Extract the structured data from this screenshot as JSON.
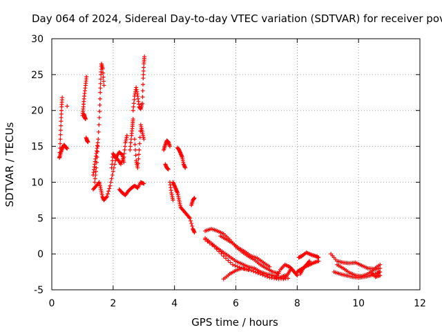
{
  "chart_data": {
    "type": "scatter",
    "title": "Day 064 of 2024, Sidereal Day-to-day VTEC variation (SDTVAR) for receiver pove",
    "xlabel": "GPS time / hours",
    "ylabel": "SDTVAR / TECUs",
    "xlim": [
      0,
      12
    ],
    "ylim": [
      -5,
      30
    ],
    "xticks": [
      "0",
      "2",
      "4",
      "6",
      "8",
      "10",
      "12"
    ],
    "yticks": [
      "-5",
      "0",
      "5",
      "10",
      "15",
      "20",
      "25",
      "30"
    ],
    "grid": true,
    "marker": "+",
    "series_color": "#ff0000",
    "tracks": [
      [
        [
          0.25,
          13.5
        ],
        [
          0.28,
          16.0
        ],
        [
          0.3,
          18.5
        ],
        [
          0.32,
          20.5
        ],
        [
          0.34,
          21.8
        ]
      ],
      [
        [
          0.25,
          13.4
        ],
        [
          0.3,
          14.2
        ],
        [
          0.35,
          14.8
        ],
        [
          0.4,
          15.2
        ],
        [
          0.45,
          14.9
        ],
        [
          0.5,
          14.7
        ]
      ],
      [
        [
          0.5,
          20.6
        ]
      ],
      [
        [
          1.0,
          19.3
        ],
        [
          1.03,
          20.5
        ],
        [
          1.06,
          22.0
        ],
        [
          1.1,
          23.5
        ],
        [
          1.13,
          24.7
        ]
      ],
      [
        [
          1.05,
          19.5
        ],
        [
          1.08,
          19.0
        ],
        [
          1.1,
          18.8
        ]
      ],
      [
        [
          1.12,
          16.2
        ],
        [
          1.15,
          15.8
        ],
        [
          1.18,
          15.6
        ]
      ],
      [
        [
          1.35,
          9.0
        ],
        [
          1.45,
          9.5
        ],
        [
          1.55,
          10.0
        ],
        [
          1.6,
          9.0
        ],
        [
          1.65,
          8.0
        ],
        [
          1.7,
          7.5
        ],
        [
          1.8,
          8.0
        ],
        [
          1.9,
          9.5
        ],
        [
          2.0,
          11.5
        ],
        [
          2.1,
          13.5
        ],
        [
          2.2,
          14.2
        ],
        [
          2.3,
          13.8
        ],
        [
          2.35,
          12.8
        ]
      ],
      [
        [
          1.4,
          10.0
        ],
        [
          1.45,
          12.0
        ],
        [
          1.5,
          15.0
        ],
        [
          1.55,
          19.0
        ],
        [
          1.58,
          22.5
        ],
        [
          1.6,
          25.0
        ],
        [
          1.62,
          26.5
        ],
        [
          1.66,
          25.8
        ],
        [
          1.7,
          23.5
        ]
      ],
      [
        [
          1.35,
          11.0
        ],
        [
          1.4,
          12.5
        ],
        [
          1.45,
          14.0
        ],
        [
          1.5,
          15.5
        ]
      ],
      [
        [
          1.95,
          12.0
        ],
        [
          2.0,
          14.0
        ],
        [
          2.05,
          13.5
        ],
        [
          2.15,
          13.2
        ],
        [
          2.25,
          12.5
        ],
        [
          2.35,
          13.5
        ],
        [
          2.4,
          15.5
        ],
        [
          2.45,
          16.5
        ]
      ],
      [
        [
          2.2,
          9.0
        ],
        [
          2.3,
          8.5
        ],
        [
          2.4,
          8.2
        ],
        [
          2.5,
          8.8
        ],
        [
          2.6,
          9.2
        ],
        [
          2.7,
          9.5
        ],
        [
          2.8,
          9.2
        ],
        [
          2.9,
          10.0
        ],
        [
          3.0,
          9.8
        ]
      ],
      [
        [
          2.55,
          14.5
        ],
        [
          2.6,
          16.5
        ],
        [
          2.63,
          17.8
        ],
        [
          2.65,
          18.8
        ]
      ],
      [
        [
          2.65,
          20.0
        ],
        [
          2.7,
          22.0
        ],
        [
          2.75,
          23.2
        ],
        [
          2.8,
          22.0
        ],
        [
          2.85,
          20.5
        ],
        [
          2.9,
          20.2
        ],
        [
          2.95,
          21.0
        ],
        [
          2.98,
          24.5
        ],
        [
          3.0,
          26.5
        ],
        [
          3.02,
          27.5
        ]
      ],
      [
        [
          2.7,
          16.0
        ],
        [
          2.75,
          13.0
        ],
        [
          2.8,
          12.0
        ],
        [
          2.85,
          14.5
        ],
        [
          2.9,
          18.0
        ],
        [
          2.95,
          17.0
        ],
        [
          3.0,
          16.0
        ]
      ],
      [
        [
          3.65,
          14.5
        ],
        [
          3.7,
          15.2
        ],
        [
          3.75,
          15.8
        ],
        [
          3.8,
          15.6
        ],
        [
          3.85,
          15.0
        ]
      ],
      [
        [
          3.7,
          12.5
        ],
        [
          3.75,
          12.0
        ],
        [
          3.8,
          11.8
        ]
      ],
      [
        [
          3.85,
          10.0
        ],
        [
          3.9,
          8.5
        ],
        [
          3.95,
          7.5
        ]
      ],
      [
        [
          3.95,
          10.0
        ],
        [
          4.0,
          9.5
        ],
        [
          4.05,
          9.0
        ],
        [
          4.1,
          8.5
        ],
        [
          4.15,
          7.5
        ],
        [
          4.2,
          6.5
        ],
        [
          4.3,
          6.0
        ],
        [
          4.4,
          5.5
        ],
        [
          4.5,
          5.0
        ],
        [
          4.6,
          3.5
        ],
        [
          4.65,
          3.0
        ]
      ],
      [
        [
          4.1,
          14.8
        ],
        [
          4.15,
          14.5
        ],
        [
          4.2,
          14.0
        ],
        [
          4.25,
          13.5
        ],
        [
          4.3,
          12.5
        ],
        [
          4.35,
          12.0
        ]
      ],
      [
        [
          4.55,
          6.8
        ],
        [
          4.6,
          7.5
        ],
        [
          4.65,
          7.8
        ]
      ],
      [
        [
          5.0,
          3.2
        ],
        [
          5.2,
          3.5
        ],
        [
          5.4,
          3.2
        ],
        [
          5.6,
          2.8
        ],
        [
          5.8,
          2.0
        ],
        [
          6.0,
          1.0
        ],
        [
          6.2,
          0.3
        ],
        [
          6.4,
          -0.3
        ],
        [
          6.6,
          -0.8
        ],
        [
          6.8,
          -1.5
        ],
        [
          7.0,
          -2.0
        ],
        [
          7.2,
          -2.5
        ],
        [
          7.4,
          -2.7
        ]
      ],
      [
        [
          5.0,
          2.2
        ],
        [
          5.2,
          1.5
        ],
        [
          5.4,
          0.8
        ],
        [
          5.6,
          0.2
        ],
        [
          5.8,
          -0.4
        ],
        [
          6.0,
          -1.0
        ],
        [
          6.2,
          -1.4
        ],
        [
          6.4,
          -1.8
        ],
        [
          6.6,
          -2.0
        ],
        [
          6.8,
          -2.5
        ],
        [
          7.0,
          -2.8
        ],
        [
          7.2,
          -3.0
        ],
        [
          7.4,
          -3.3
        ],
        [
          7.6,
          -3.0
        ]
      ],
      [
        [
          5.0,
          2.0
        ],
        [
          5.3,
          1.0
        ],
        [
          5.6,
          -0.3
        ],
        [
          5.9,
          -1.5
        ],
        [
          6.2,
          -2.0
        ],
        [
          6.5,
          -2.3
        ],
        [
          6.8,
          -2.8
        ],
        [
          7.1,
          -3.3
        ],
        [
          7.4,
          -3.5
        ],
        [
          7.7,
          -3.4
        ]
      ],
      [
        [
          5.5,
          2.5
        ],
        [
          5.7,
          2.0
        ],
        [
          5.9,
          1.5
        ],
        [
          6.1,
          0.8
        ],
        [
          6.3,
          0.3
        ],
        [
          6.5,
          -0.3
        ],
        [
          6.7,
          -0.6
        ],
        [
          6.9,
          -1.2
        ],
        [
          7.1,
          -1.8
        ]
      ],
      [
        [
          5.6,
          -3.5
        ],
        [
          5.8,
          -2.8
        ],
        [
          6.0,
          -2.3
        ],
        [
          6.2,
          -2.0
        ],
        [
          6.4,
          -2.2
        ]
      ],
      [
        [
          7.3,
          -3.3
        ],
        [
          7.45,
          -2.2
        ],
        [
          7.6,
          -1.5
        ],
        [
          7.75,
          -1.8
        ],
        [
          7.85,
          -2.2
        ]
      ],
      [
        [
          7.55,
          -3.5
        ],
        [
          7.7,
          -2.8
        ],
        [
          7.8,
          -2.0
        ],
        [
          7.9,
          -2.5
        ],
        [
          8.0,
          -3.0
        ]
      ],
      [
        [
          8.05,
          -0.5
        ],
        [
          8.15,
          -0.3
        ],
        [
          8.3,
          0.2
        ],
        [
          8.45,
          -0.1
        ],
        [
          8.6,
          -0.3
        ],
        [
          8.7,
          -0.5
        ]
      ],
      [
        [
          8.0,
          -2.5
        ],
        [
          8.1,
          -2.2
        ],
        [
          8.25,
          -1.8
        ],
        [
          8.4,
          -1.5
        ],
        [
          8.55,
          -1.2
        ],
        [
          8.7,
          -1.0
        ]
      ],
      [
        [
          8.1,
          -2.8
        ],
        [
          8.2,
          -2.0
        ],
        [
          8.3,
          -1.5
        ],
        [
          8.4,
          -1.0
        ]
      ],
      [
        [
          9.1,
          0.0
        ],
        [
          9.3,
          -1.0
        ],
        [
          9.5,
          -1.2
        ],
        [
          9.7,
          -1.3
        ],
        [
          9.9,
          -1.2
        ],
        [
          10.1,
          -1.6
        ],
        [
          10.3,
          -2.0
        ],
        [
          10.5,
          -2.1
        ],
        [
          10.7,
          -1.5
        ]
      ],
      [
        [
          9.2,
          -2.5
        ],
        [
          9.4,
          -2.8
        ],
        [
          9.6,
          -3.0
        ],
        [
          9.8,
          -3.2
        ],
        [
          10.0,
          -3.3
        ],
        [
          10.2,
          -3.2
        ],
        [
          10.4,
          -3.0
        ],
        [
          10.6,
          -2.7
        ],
        [
          10.7,
          -2.5
        ]
      ],
      [
        [
          9.3,
          -1.5
        ],
        [
          9.5,
          -2.0
        ],
        [
          9.7,
          -2.6
        ],
        [
          9.9,
          -3.0
        ],
        [
          10.1,
          -3.1
        ],
        [
          10.3,
          -2.8
        ],
        [
          10.5,
          -2.2
        ],
        [
          10.7,
          -2.0
        ]
      ],
      [
        [
          10.4,
          -2.5
        ],
        [
          10.55,
          -3.2
        ],
        [
          10.7,
          -3.0
        ]
      ]
    ]
  }
}
